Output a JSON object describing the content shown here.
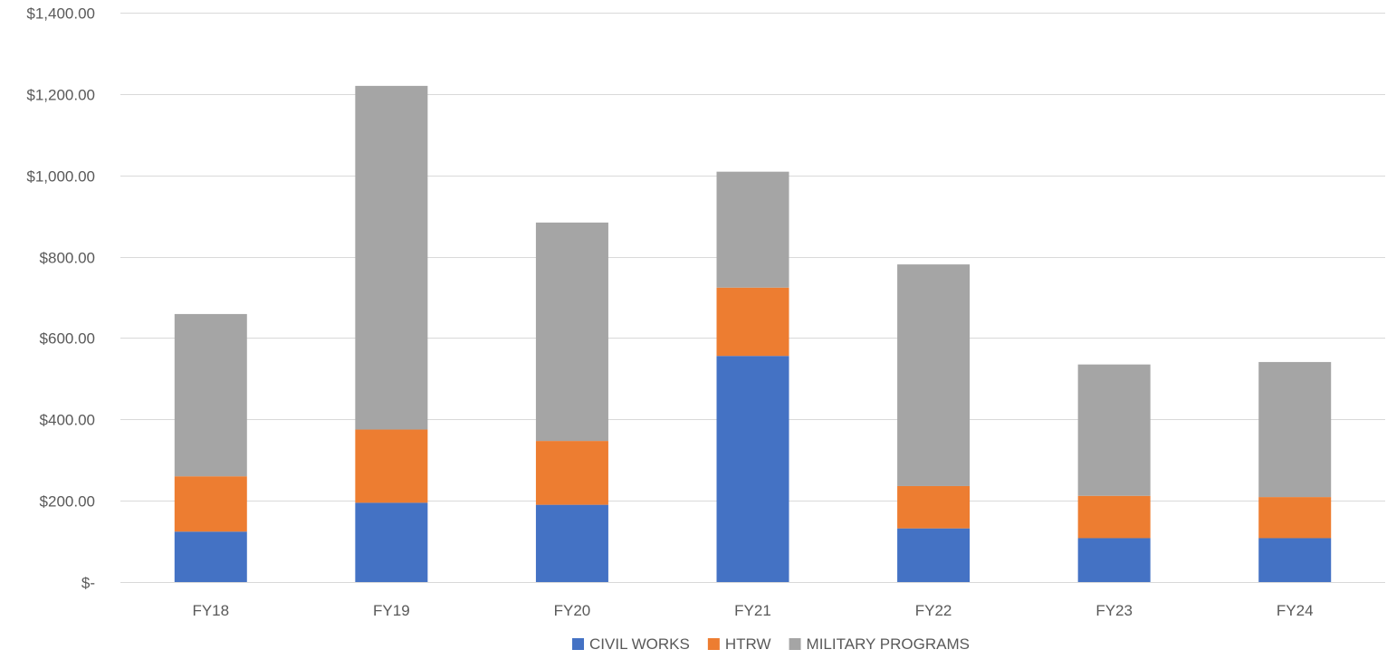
{
  "chart_data": {
    "type": "bar",
    "stacked": true,
    "categories": [
      "FY18",
      "FY19",
      "FY20",
      "FY21",
      "FY22",
      "FY23",
      "FY24"
    ],
    "series": [
      {
        "name": "CIVIL WORKS",
        "color": "#4472C4",
        "values": [
          124,
          195,
          190,
          556,
          132,
          108,
          108
        ]
      },
      {
        "name": "HTRW",
        "color": "#ED7D31",
        "values": [
          136,
          180,
          157,
          168,
          104,
          104,
          101
        ]
      },
      {
        "name": "MILITARY PROGRAMS",
        "color": "#A5A5A5",
        "values": [
          399,
          845,
          537,
          285,
          545,
          323,
          332
        ]
      }
    ],
    "ylim": [
      0,
      1400
    ],
    "yticks": [
      0,
      200,
      400,
      600,
      800,
      1000,
      1200,
      1400
    ],
    "ytick_labels": [
      "$-",
      "$200.00",
      "$400.00",
      "$600.00",
      "$800.00",
      "$1,000.00",
      "$1,200.00",
      "$1,400.00"
    ],
    "grid": true,
    "legend_position": "bottom",
    "gridline_color": "#D9D9D9",
    "text_color": "#595959"
  }
}
